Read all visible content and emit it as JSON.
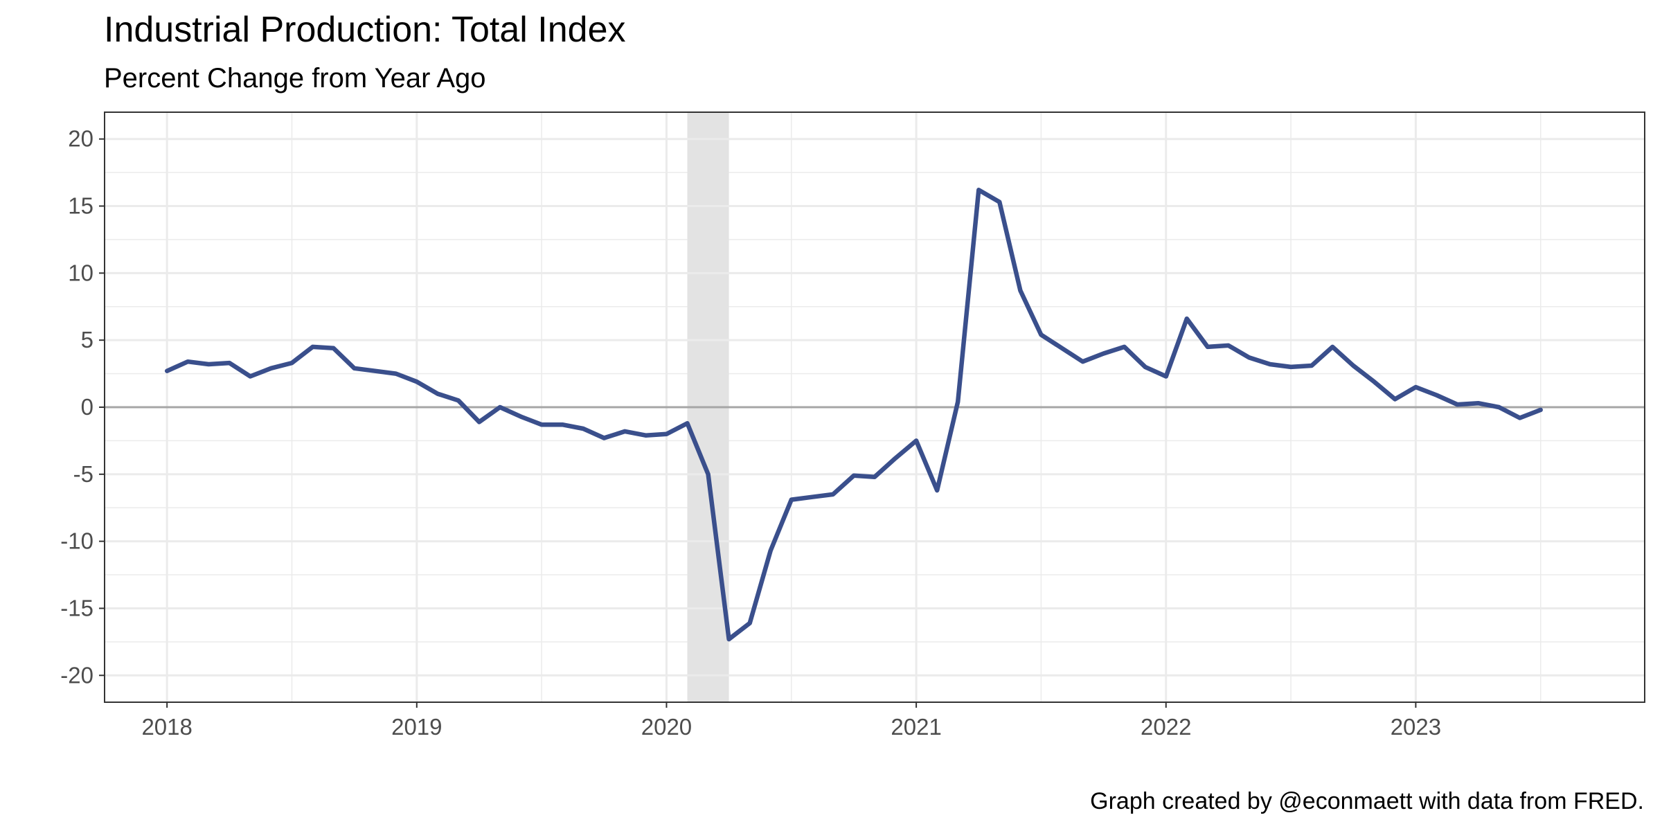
{
  "chart_data": {
    "type": "line",
    "title": "Industrial Production: Total Index",
    "subtitle": "Percent Change from Year Ago",
    "caption": "Graph created by @econmaett with data from FRED.",
    "xlabel": "",
    "ylabel": "",
    "x_ticks": [
      "2018",
      "2019",
      "2020",
      "2021",
      "2022",
      "2023"
    ],
    "y_ticks": [
      "20",
      "15",
      "10",
      "5",
      "0",
      "-5",
      "-10",
      "-15",
      "-20"
    ],
    "xlim": [
      "2017-10",
      "2023-12"
    ],
    "ylim": [
      -22,
      22
    ],
    "grid": true,
    "zero_line": true,
    "recession_shading": [
      [
        "2020-02",
        "2020-04"
      ]
    ],
    "series": [
      {
        "color": "#3a4f8c",
        "points": [
          [
            "2018-01",
            2.7
          ],
          [
            "2018-02",
            3.4
          ],
          [
            "2018-03",
            3.2
          ],
          [
            "2018-04",
            3.3
          ],
          [
            "2018-05",
            2.3
          ],
          [
            "2018-06",
            2.9
          ],
          [
            "2018-07",
            3.3
          ],
          [
            "2018-08",
            4.5
          ],
          [
            "2018-09",
            4.4
          ],
          [
            "2018-10",
            2.9
          ],
          [
            "2018-11",
            2.7
          ],
          [
            "2018-12",
            2.5
          ],
          [
            "2019-01",
            1.9
          ],
          [
            "2019-02",
            1.0
          ],
          [
            "2019-03",
            0.5
          ],
          [
            "2019-04",
            -1.1
          ],
          [
            "2019-05",
            0.0
          ],
          [
            "2019-06",
            -0.7
          ],
          [
            "2019-07",
            -1.3
          ],
          [
            "2019-08",
            -1.3
          ],
          [
            "2019-09",
            -1.6
          ],
          [
            "2019-10",
            -2.3
          ],
          [
            "2019-11",
            -1.8
          ],
          [
            "2019-12",
            -2.1
          ],
          [
            "2020-01",
            -2.0
          ],
          [
            "2020-02",
            -1.2
          ],
          [
            "2020-03",
            -5.0
          ],
          [
            "2020-04",
            -17.3
          ],
          [
            "2020-05",
            -16.1
          ],
          [
            "2020-06",
            -10.7
          ],
          [
            "2020-07",
            -6.9
          ],
          [
            "2020-08",
            -6.7
          ],
          [
            "2020-09",
            -6.5
          ],
          [
            "2020-10",
            -5.1
          ],
          [
            "2020-11",
            -5.2
          ],
          [
            "2020-12",
            -3.8
          ],
          [
            "2021-01",
            -2.5
          ],
          [
            "2021-02",
            -6.2
          ],
          [
            "2021-03",
            0.4
          ],
          [
            "2021-04",
            16.2
          ],
          [
            "2021-05",
            15.3
          ],
          [
            "2021-06",
            8.7
          ],
          [
            "2021-07",
            5.4
          ],
          [
            "2021-08",
            4.4
          ],
          [
            "2021-09",
            3.4
          ],
          [
            "2021-10",
            4.0
          ],
          [
            "2021-11",
            4.5
          ],
          [
            "2021-12",
            3.0
          ],
          [
            "2022-01",
            2.3
          ],
          [
            "2022-02",
            6.6
          ],
          [
            "2022-03",
            4.5
          ],
          [
            "2022-04",
            4.6
          ],
          [
            "2022-05",
            3.7
          ],
          [
            "2022-06",
            3.2
          ],
          [
            "2022-07",
            3.0
          ],
          [
            "2022-08",
            3.1
          ],
          [
            "2022-09",
            4.5
          ],
          [
            "2022-10",
            3.1
          ],
          [
            "2022-11",
            1.9
          ],
          [
            "2022-12",
            0.6
          ],
          [
            "2023-01",
            1.5
          ],
          [
            "2023-02",
            0.9
          ],
          [
            "2023-03",
            0.2
          ],
          [
            "2023-04",
            0.3
          ],
          [
            "2023-05",
            0.0
          ],
          [
            "2023-06",
            -0.8
          ],
          [
            "2023-07",
            -0.2
          ]
        ]
      }
    ]
  }
}
